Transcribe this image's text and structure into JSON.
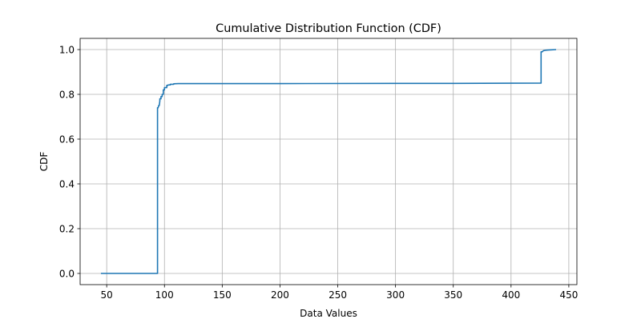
{
  "chart_data": {
    "type": "line",
    "title": "Cumulative Distribution Function (CDF)",
    "xlabel": "Data Values",
    "ylabel": "CDF",
    "xlim": [
      27,
      457
    ],
    "ylim": [
      -0.05,
      1.05
    ],
    "xticks": [
      50,
      100,
      150,
      200,
      250,
      300,
      350,
      400,
      450
    ],
    "yticks": [
      0.0,
      0.2,
      0.4,
      0.6,
      0.8,
      1.0
    ],
    "grid": true,
    "series": [
      {
        "color": "#1f77b4",
        "x": [
          45,
          94,
          94,
          94.5,
          95,
          95.5,
          96,
          96,
          97,
          97,
          98,
          98,
          99,
          99,
          100,
          100,
          101,
          101,
          102,
          102,
          103,
          103,
          105,
          105,
          108,
          108,
          112,
          200,
          300,
          350,
          426,
          426,
          427,
          428,
          430,
          432,
          435,
          439
        ],
        "y": [
          0.0,
          0.0,
          0.74,
          0.74,
          0.75,
          0.75,
          0.77,
          0.78,
          0.78,
          0.79,
          0.79,
          0.8,
          0.8,
          0.82,
          0.82,
          0.83,
          0.83,
          0.83,
          0.83,
          0.84,
          0.84,
          0.842,
          0.842,
          0.845,
          0.845,
          0.847,
          0.848,
          0.848,
          0.849,
          0.849,
          0.85,
          0.99,
          0.99,
          0.995,
          0.997,
          0.998,
          0.999,
          1.0
        ]
      }
    ]
  }
}
